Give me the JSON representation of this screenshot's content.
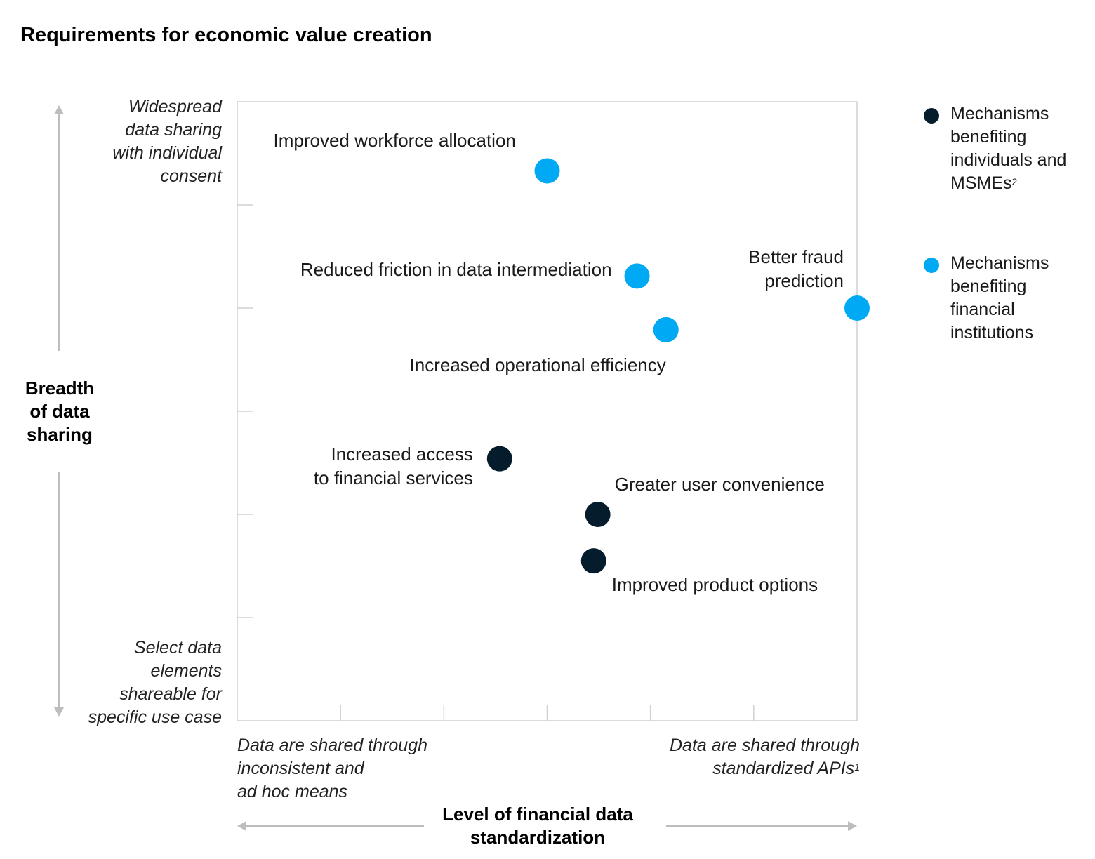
{
  "chart_data": {
    "type": "scatter",
    "title": "Requirements for economic value creation",
    "xlabel": "Level of financial data\nstandardization",
    "ylabel": "Breadth\nof data\nsharing",
    "x_low_label": "Data are shared through\ninconsistent and\nad hoc means",
    "x_high_label": "Data are shared through\nstandardized APIs",
    "x_high_footnote": "1",
    "y_high_label": "Widespread\ndata sharing\nwith individual\nconsent",
    "y_low_label": "Select data\nelements\nshareable for\nspecific use case",
    "xlim": [
      0,
      6
    ],
    "ylim": [
      0,
      6
    ],
    "grid": false,
    "legend_placement": "right",
    "series": [
      {
        "name": "Mechanisms benefiting individuals and MSMEs",
        "footnote": "2",
        "color": "#051c2c",
        "points": [
          {
            "label": "Increased access\nto financial services",
            "x": 2.54,
            "y": 2.54
          },
          {
            "label": "Greater user convenience",
            "x": 3.49,
            "y": 2.0
          },
          {
            "label": "Improved product options",
            "x": 3.45,
            "y": 1.55
          }
        ]
      },
      {
        "name": "Mechanisms benefiting financial institutions",
        "color": "#00a9f4",
        "points": [
          {
            "label": "Improved workforce allocation",
            "x": 3.0,
            "y": 5.33
          },
          {
            "label": "Reduced friction in data intermediation",
            "x": 3.87,
            "y": 4.31
          },
          {
            "label": "Better fraud\nprediction",
            "x": 6.0,
            "y": 4.0
          },
          {
            "label": "Increased operational efficiency",
            "x": 4.15,
            "y": 3.79
          }
        ]
      }
    ]
  }
}
